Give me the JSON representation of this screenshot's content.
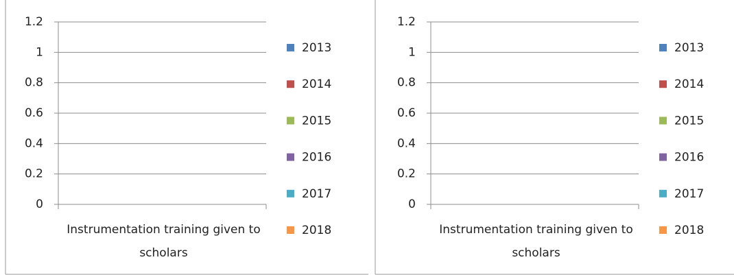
{
  "chart_data": [
    {
      "type": "bar",
      "categories": [
        "Instrumentation training given to scholars"
      ],
      "series": [
        {
          "name": "2013",
          "color": "#4f81bd",
          "values": [
            null
          ]
        },
        {
          "name": "2014",
          "color": "#c0504d",
          "values": [
            null
          ]
        },
        {
          "name": "2015",
          "color": "#9bbb59",
          "values": [
            null
          ]
        },
        {
          "name": "2016",
          "color": "#8064a2",
          "values": [
            null
          ]
        },
        {
          "name": "2017",
          "color": "#4bacc6",
          "values": [
            null
          ]
        },
        {
          "name": "2018",
          "color": "#f79646",
          "values": [
            null
          ]
        }
      ],
      "ylim": [
        0,
        1.2
      ],
      "yticks": [
        0,
        0.2,
        0.4,
        0.6,
        0.8,
        1,
        1.2
      ],
      "grid": true,
      "legend": "right"
    },
    {
      "type": "bar",
      "categories": [
        "Instrumentation training given to scholars"
      ],
      "series": [
        {
          "name": "2013",
          "color": "#4f81bd",
          "values": [
            null
          ]
        },
        {
          "name": "2014",
          "color": "#c0504d",
          "values": [
            null
          ]
        },
        {
          "name": "2015",
          "color": "#9bbb59",
          "values": [
            null
          ]
        },
        {
          "name": "2016",
          "color": "#8064a2",
          "values": [
            null
          ]
        },
        {
          "name": "2017",
          "color": "#4bacc6",
          "values": [
            null
          ]
        },
        {
          "name": "2018",
          "color": "#f79646",
          "values": [
            null
          ]
        }
      ],
      "ylim": [
        0,
        1.2
      ],
      "yticks": [
        0,
        0.2,
        0.4,
        0.6,
        0.8,
        1,
        1.2
      ],
      "grid": true,
      "legend": "right"
    }
  ]
}
